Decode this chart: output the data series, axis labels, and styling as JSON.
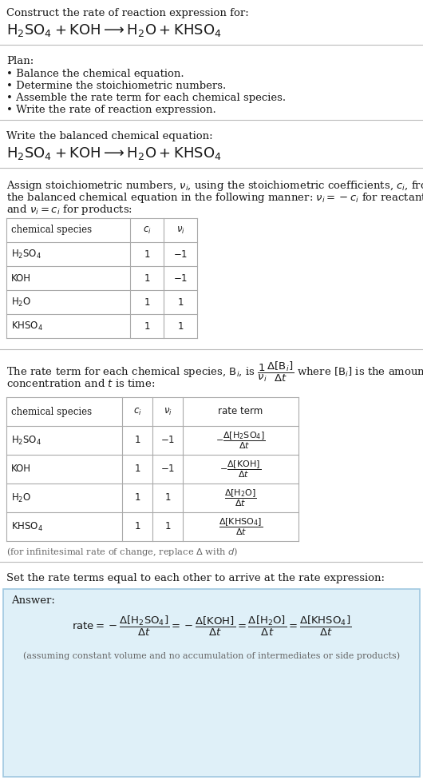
{
  "bg_color": "#ffffff",
  "text_color": "#1a1a1a",
  "gray_text": "#666666",
  "answer_bg": "#dff0f8",
  "answer_border": "#a0c8e0",
  "title_line1": "Construct the rate of reaction expression for:",
  "title_line2_latex": "$\\mathrm{H_2SO_4 + KOH \\longrightarrow H_2O + KHSO_4}$",
  "plan_header": "Plan:",
  "plan_items": [
    "• Balance the chemical equation.",
    "• Determine the stoichiometric numbers.",
    "• Assemble the rate term for each chemical species.",
    "• Write the rate of reaction expression."
  ],
  "balanced_header": "Write the balanced chemical equation:",
  "balanced_eq": "$\\mathrm{H_2SO_4 + KOH \\longrightarrow H_2O + KHSO_4}$",
  "stoich_lines": [
    "Assign stoichiometric numbers, $\\nu_i$, using the stoichiometric coefficients, $c_i$, from",
    "the balanced chemical equation in the following manner: $\\nu_i = -c_i$ for reactants",
    "and $\\nu_i = c_i$ for products:"
  ],
  "table1_headers": [
    "chemical species",
    "$c_i$",
    "$\\nu_i$"
  ],
  "table1_rows": [
    [
      "$\\mathrm{H_2SO_4}$",
      "1",
      "$-1$"
    ],
    [
      "KOH",
      "1",
      "$-1$"
    ],
    [
      "$\\mathrm{H_2O}$",
      "1",
      "$1$"
    ],
    [
      "$\\mathrm{KHSO_4}$",
      "1",
      "$1$"
    ]
  ],
  "rate_lines": [
    "The rate term for each chemical species, $\\mathrm{B}_i$, is $\\dfrac{1}{\\nu_i}\\dfrac{\\Delta[\\mathrm{B}_i]}{\\Delta t}$ where $[\\mathrm{B}_i]$ is the amount",
    "concentration and $t$ is time:"
  ],
  "table2_headers": [
    "chemical species",
    "$c_i$",
    "$\\nu_i$",
    "rate term"
  ],
  "table2_rows": [
    [
      "$\\mathrm{H_2SO_4}$",
      "1",
      "$-1$",
      "$-\\dfrac{\\Delta[\\mathrm{H_2SO_4}]}{\\Delta t}$"
    ],
    [
      "KOH",
      "1",
      "$-1$",
      "$-\\dfrac{\\Delta[\\mathrm{KOH}]}{\\Delta t}$"
    ],
    [
      "$\\mathrm{H_2O}$",
      "1",
      "$1$",
      "$\\dfrac{\\Delta[\\mathrm{H_2O}]}{\\Delta t}$"
    ],
    [
      "$\\mathrm{KHSO_4}$",
      "1",
      "$1$",
      "$\\dfrac{\\Delta[\\mathrm{KHSO_4}]}{\\Delta t}$"
    ]
  ],
  "infinitesimal_note": "(for infinitesimal rate of change, replace $\\Delta$ with $d$)",
  "set_rate_header": "Set the rate terms equal to each other to arrive at the rate expression:",
  "answer_label": "Answer:",
  "rate_expression": "$\\mathrm{rate} = -\\dfrac{\\Delta[\\mathrm{H_2SO_4}]}{\\Delta t} = -\\dfrac{\\Delta[\\mathrm{KOH}]}{\\Delta t} = \\dfrac{\\Delta[\\mathrm{H_2O}]}{\\Delta t} = \\dfrac{\\Delta[\\mathrm{KHSO_4}]}{\\Delta t}$",
  "assuming_note": "(assuming constant volume and no accumulation of intermediates or side products)"
}
